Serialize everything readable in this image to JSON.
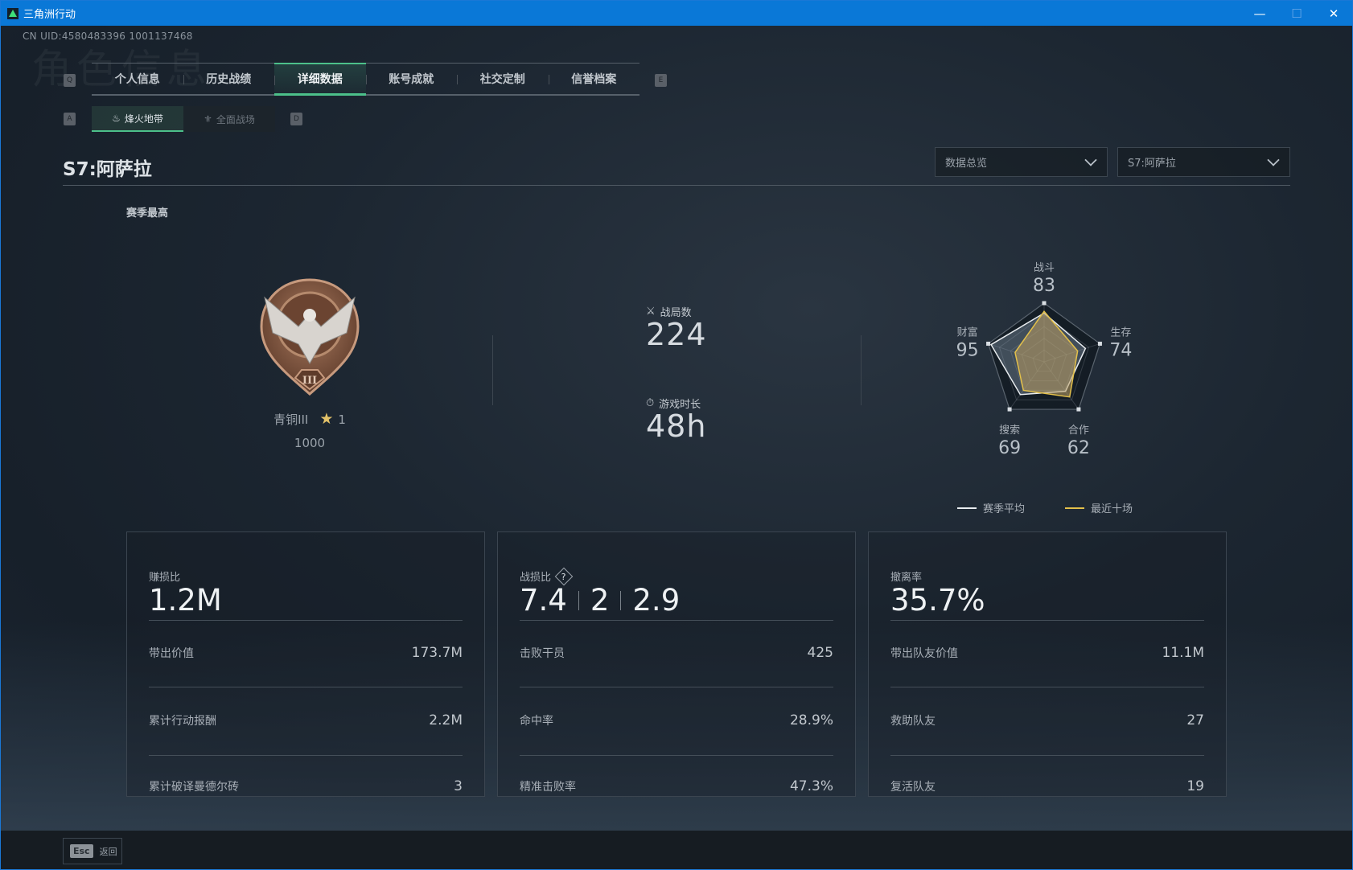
{
  "window": {
    "title": "三角洲行动",
    "minimize": "—",
    "maximize": "☐",
    "close": "✕"
  },
  "uid": "CN UID:4580483396 1001137468",
  "watermark": "角色信息",
  "tabs": {
    "key_left": "Q",
    "key_right": "E",
    "items": [
      {
        "label": "个人信息"
      },
      {
        "label": "历史战绩"
      },
      {
        "label": "详细数据",
        "active": true
      },
      {
        "label": "账号成就"
      },
      {
        "label": "社交定制"
      },
      {
        "label": "信誉档案"
      }
    ]
  },
  "subtabs": {
    "key_left": "A",
    "key_right": "D",
    "items": [
      {
        "label": "烽火地带",
        "icon": "campfire-icon",
        "active": true
      },
      {
        "label": "全面战场",
        "icon": "wings-icon"
      }
    ]
  },
  "season_title": "S7:阿萨拉",
  "dropdowns": {
    "view": "数据总览",
    "season": "S7:阿萨拉"
  },
  "season_best": {
    "label": "赛季最高",
    "rank": "青铜III",
    "stars": "1",
    "score": "1000"
  },
  "stats": {
    "matches_label": "战局数",
    "matches": "224",
    "playtime_label": "游戏时长",
    "playtime": "48h"
  },
  "chart_data": {
    "type": "radar",
    "axes": [
      "战斗",
      "生存",
      "合作",
      "搜索",
      "财富"
    ],
    "axis_values": [
      "83",
      "74",
      "62",
      "69",
      "95"
    ],
    "range": [
      0,
      100
    ],
    "series": [
      {
        "name": "赛季平均",
        "values": [
          83,
          74,
          62,
          69,
          95
        ],
        "color": "#e8ecef"
      },
      {
        "name": "最近十场",
        "values": [
          86,
          60,
          74,
          60,
          52
        ],
        "color": "#e3c04a"
      }
    ],
    "legend": "bottom"
  },
  "cards": [
    {
      "title": "赚损比",
      "big": [
        "1.2M"
      ],
      "rows": [
        {
          "label": "带出价值",
          "value": "173.7M"
        },
        {
          "label": "累计行动报酬",
          "value": "2.2M"
        },
        {
          "label": "累计破译曼德尔砖",
          "value": "3"
        }
      ]
    },
    {
      "title": "战损比",
      "help": "?",
      "big": [
        "7.4",
        "2",
        "2.9"
      ],
      "rows": [
        {
          "label": "击败干员",
          "value": "425"
        },
        {
          "label": "命中率",
          "value": "28.9%"
        },
        {
          "label": "精准击败率",
          "value": "47.3%"
        }
      ]
    },
    {
      "title": "撤离率",
      "big": [
        "35.7%"
      ],
      "rows": [
        {
          "label": "带出队友价值",
          "value": "11.1M"
        },
        {
          "label": "救助队友",
          "value": "27"
        },
        {
          "label": "复活队友",
          "value": "19"
        }
      ]
    }
  ],
  "footer": {
    "esc_key": "Esc",
    "back": "返回"
  }
}
